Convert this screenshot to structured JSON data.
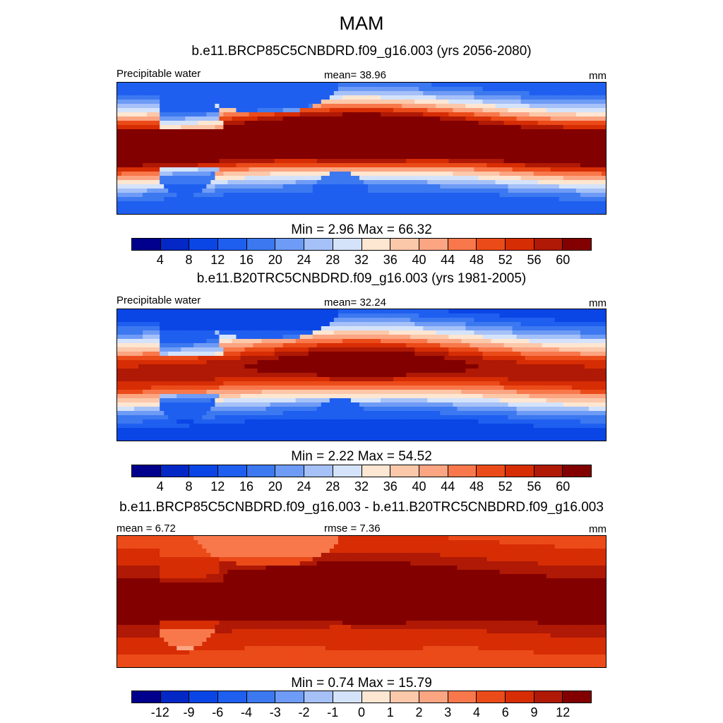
{
  "title": "MAM",
  "palette": [
    "#00008c",
    "#0328c6",
    "#0a46e6",
    "#1f5ff0",
    "#3c78f0",
    "#6e9bf5",
    "#a5c1f8",
    "#d5e3fa",
    "#fde6d2",
    "#fcc8aa",
    "#fba582",
    "#f8784b",
    "#eb4b19",
    "#d72d05",
    "#af1905",
    "#820000"
  ],
  "chart_data": [
    {
      "type": "heatmap",
      "title": "b.e11.BRCP85C5CNBDRD.f09_g16.003 (yrs 2056-2080)",
      "left_label": "Precipitable water",
      "center_label": "mean=  38.96",
      "units": "mm",
      "min_max": "Min =   2.96 Max =  66.32",
      "min": 2.96,
      "max": 66.32,
      "mean": 38.96,
      "colorbar_ticks": [
        "4",
        "8",
        "12",
        "16",
        "20",
        "24",
        "28",
        "32",
        "36",
        "40",
        "44",
        "48",
        "52",
        "56",
        "60"
      ],
      "field": "future"
    },
    {
      "type": "heatmap",
      "title": "b.e11.B20TRC5CNBDRD.f09_g16.003 (yrs 1981-2005)",
      "left_label": "Precipitable water",
      "center_label": "mean=  32.24",
      "units": "mm",
      "min_max": "Min =   2.22 Max =  54.52",
      "min": 2.22,
      "max": 54.52,
      "mean": 32.24,
      "colorbar_ticks": [
        "4",
        "8",
        "12",
        "16",
        "20",
        "24",
        "28",
        "32",
        "36",
        "40",
        "44",
        "48",
        "52",
        "56",
        "60"
      ],
      "field": "historical"
    },
    {
      "type": "heatmap",
      "title": "b.e11.BRCP85C5CNBDRD.f09_g16.003 - b.e11.B20TRC5CNBDRD.f09_g16.003",
      "left_label": "mean =   6.72",
      "center_label": "rmse =   7.36",
      "units": "mm",
      "min_max": "Min =   0.74 Max =  15.79",
      "min": 0.74,
      "max": 15.79,
      "mean": 6.72,
      "rmse": 7.36,
      "colorbar_ticks": [
        "-12",
        "-9",
        "-6",
        "-4",
        "-3",
        "-2",
        "-1",
        "0",
        "1",
        "2",
        "3",
        "4",
        "6",
        "9",
        "12"
      ],
      "field": "difference"
    }
  ]
}
